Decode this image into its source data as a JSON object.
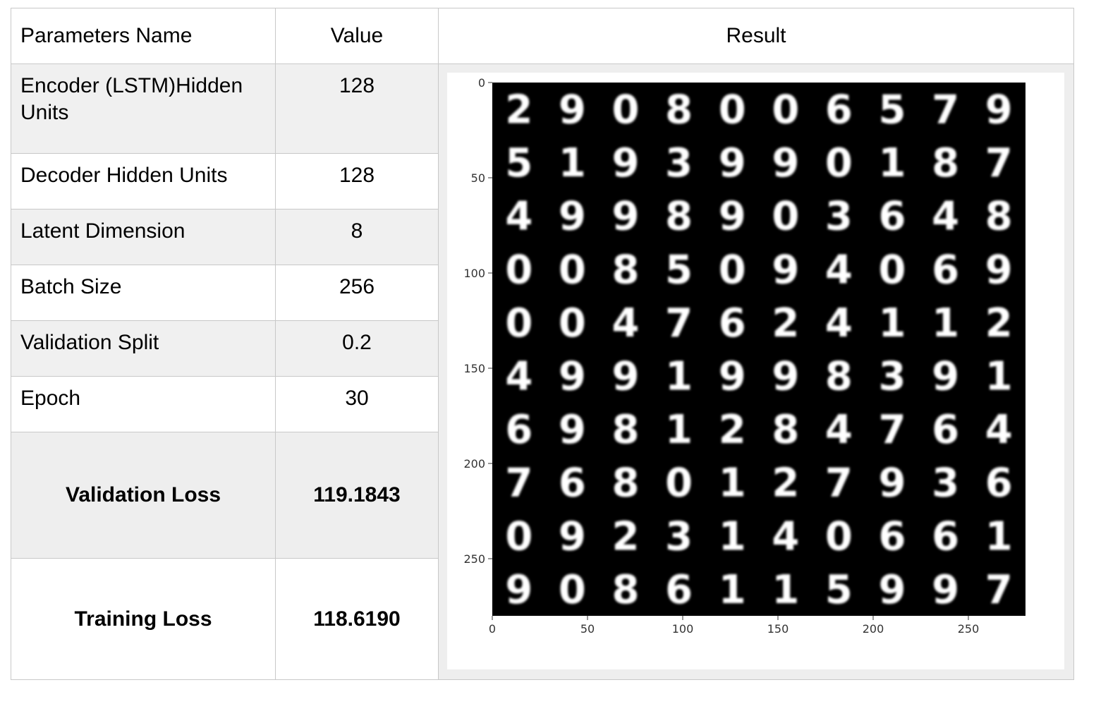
{
  "table": {
    "headers": [
      "Parameters Name",
      "Value",
      "Result"
    ],
    "rows": [
      {
        "name": "Encoder (LSTM)Hidden Units",
        "value": "128"
      },
      {
        "name": "Decoder Hidden Units",
        "value": "128"
      },
      {
        "name": "Latent Dimension",
        "value": "8"
      },
      {
        "name": "Batch Size",
        "value": "256"
      },
      {
        "name": "Validation Split",
        "value": "0.2"
      },
      {
        "name": "Epoch",
        "value": "30"
      },
      {
        "name": "Validation Loss",
        "value": "119.1843"
      },
      {
        "name": "Training Loss",
        "value": "118.6190"
      }
    ]
  },
  "result_image": {
    "kind": "generated MNIST digit grid",
    "x_ticks": [
      "0",
      "50",
      "100",
      "150",
      "200",
      "250"
    ],
    "y_ticks": [
      "0",
      "50",
      "100",
      "150",
      "200",
      "250"
    ],
    "x_range": [
      0,
      280
    ],
    "y_range": [
      0,
      280
    ],
    "digits": [
      [
        "2",
        "9",
        "0",
        "8",
        "0",
        "0",
        "6",
        "5",
        "7",
        "9"
      ],
      [
        "5",
        "1",
        "9",
        "3",
        "9",
        "9",
        "0",
        "1",
        "8",
        "7"
      ],
      [
        "4",
        "9",
        "9",
        "8",
        "9",
        "0",
        "3",
        "6",
        "4",
        "8"
      ],
      [
        "0",
        "0",
        "8",
        "5",
        "0",
        "9",
        "4",
        "0",
        "6",
        "9"
      ],
      [
        "0",
        "0",
        "4",
        "7",
        "6",
        "2",
        "4",
        "1",
        "1",
        "2"
      ],
      [
        "4",
        "9",
        "9",
        "1",
        "9",
        "9",
        "8",
        "3",
        "9",
        "1"
      ],
      [
        "6",
        "9",
        "8",
        "1",
        "2",
        "8",
        "4",
        "7",
        "6",
        "4"
      ],
      [
        "7",
        "6",
        "8",
        "0",
        "1",
        "2",
        "7",
        "9",
        "3",
        "6"
      ],
      [
        "0",
        "9",
        "2",
        "3",
        "1",
        "4",
        "0",
        "6",
        "6",
        "1"
      ],
      [
        "9",
        "0",
        "8",
        "6",
        "1",
        "1",
        "5",
        "9",
        "9",
        "7"
      ]
    ],
    "colors": {
      "background": "#000000",
      "digit": "#ffffff"
    }
  }
}
